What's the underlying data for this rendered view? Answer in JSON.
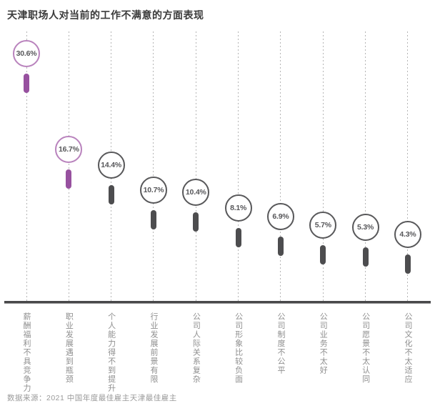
{
  "title": "天津职场人对当前的工作不满意的方面表现",
  "source": "数据来源：2021 中国年度最佳雇主天津最佳雇主",
  "colors": {
    "highlight_stroke": "#b983bd",
    "highlight_bar": "#97519f",
    "normal_stroke": "#58585a",
    "normal_bar": "#4d4d4f",
    "axis": "#48484a",
    "gridline": "#b5b5b5",
    "value_text": "#57575a",
    "category_text": "#8f8f8f"
  },
  "chart_data": {
    "type": "scatter",
    "title": "天津职场人对当前的工作不满意的方面表现",
    "categories": [
      "薪酬福利不具竞争力",
      "职业发展遇到瓶颈",
      "个人能力得不到提升",
      "行业发展前景有限",
      "公司人际关系复杂",
      "公司形象比较负面",
      "公司制度不公平",
      "公司业务不太好",
      "公司愿景不太认同",
      "公司文化不太适应"
    ],
    "values": [
      30.6,
      16.7,
      14.4,
      10.7,
      10.4,
      8.1,
      6.9,
      5.7,
      5.3,
      4.3
    ],
    "value_labels": [
      "30.6%",
      "16.7%",
      "14.4%",
      "10.7%",
      "10.4%",
      "8.1%",
      "6.9%",
      "5.7%",
      "5.3%",
      "4.3%"
    ],
    "highlighted": [
      true,
      true,
      false,
      false,
      false,
      false,
      false,
      false,
      false,
      false
    ],
    "xlabel": "",
    "ylabel": "",
    "value_range": [
      0,
      35
    ],
    "grid": "vertical-dotted",
    "legend": "none",
    "source_note": "数据来源：2021 中国年度最佳雇主天津最佳雇主"
  }
}
